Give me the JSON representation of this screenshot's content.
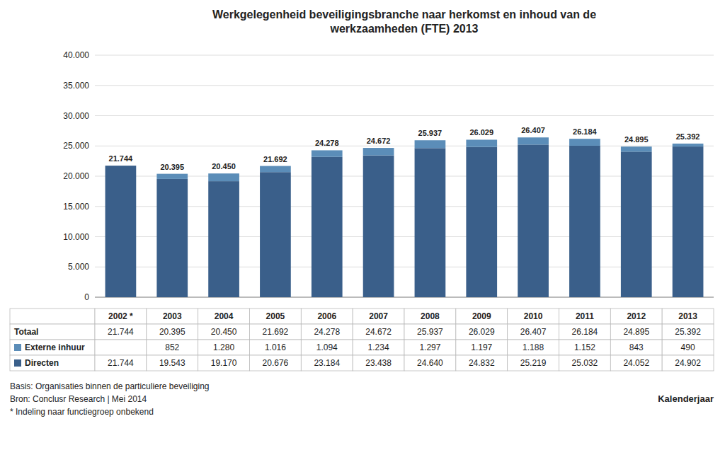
{
  "chart_data": {
    "type": "bar",
    "title": "Werkgelegenheid beveiligingsbranche naar herkomst en inhoud van de\nwerkzaamheden (FTE) 2013",
    "categories": [
      "2002 *",
      "2003",
      "2004",
      "2005",
      "2006",
      "2007",
      "2008",
      "2009",
      "2010",
      "2011",
      "2012",
      "2013"
    ],
    "stacked": true,
    "series": [
      {
        "name": "Directen",
        "color": "#3A5F8A",
        "values": [
          21744,
          19543,
          19170,
          20676,
          23184,
          23438,
          24640,
          24832,
          25219,
          25032,
          24052,
          24902
        ],
        "value_labels": [
          "21.744",
          "19.543",
          "19.170",
          "20.676",
          "23.184",
          "23.438",
          "24.640",
          "24.832",
          "25.219",
          "25.032",
          "24.052",
          "24.902"
        ]
      },
      {
        "name": "Externe inhuur",
        "color": "#5B8DB8",
        "values": [
          0,
          852,
          1280,
          1016,
          1094,
          1234,
          1297,
          1197,
          1188,
          1152,
          843,
          490
        ],
        "value_labels": [
          null,
          "852",
          "1.280",
          "1.016",
          "1.094",
          "1.234",
          "1.297",
          "1.197",
          "1.188",
          "1.152",
          "843",
          "490"
        ]
      }
    ],
    "totals": {
      "name": "Totaal",
      "values": [
        21744,
        20395,
        20450,
        21692,
        24278,
        24672,
        25937,
        26029,
        26407,
        26184,
        24895,
        25392
      ],
      "value_labels": [
        "21.744",
        "20.395",
        "20.450",
        "21.692",
        "24.278",
        "24.672",
        "25.937",
        "26.029",
        "26.407",
        "26.184",
        "24.895",
        "25.392"
      ]
    },
    "ylim": [
      0,
      40000
    ],
    "yticks": [
      0,
      {
        "value": 5000,
        "label": "5.000"
      },
      {
        "value": 10000,
        "label": "10.000"
      },
      {
        "value": 15000,
        "label": "15.000"
      },
      {
        "value": 20000,
        "label": "20.000"
      },
      {
        "value": 25000,
        "label": "25.000"
      },
      {
        "value": 30000,
        "label": "30.000"
      },
      {
        "value": 35000,
        "label": "35.000"
      },
      {
        "value": 40000,
        "label": "40.000"
      }
    ],
    "grid": true,
    "xlabel": "Kalenderjaar",
    "notes": [
      "Basis: Organisaties binnen de particuliere beveiliging",
      "Bron: Conclusr Research | Mei 2014",
      "* Indeling naar functiegroep onbekend"
    ]
  }
}
